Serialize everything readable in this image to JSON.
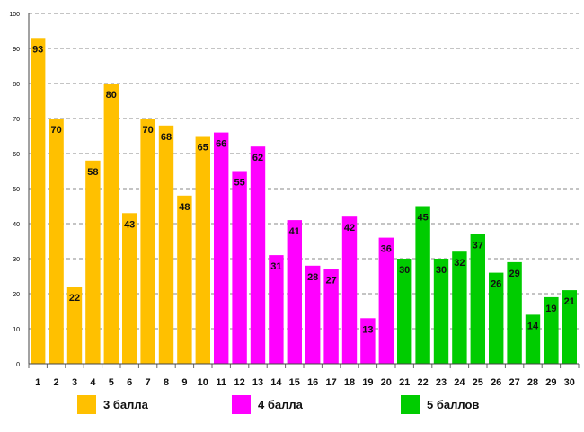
{
  "chart_data": {
    "type": "bar",
    "title": "",
    "xlabel": "",
    "ylabel": "",
    "ylim": [
      0,
      100
    ],
    "yticks": [
      0,
      10,
      20,
      30,
      40,
      50,
      60,
      70,
      80,
      90,
      100
    ],
    "grid": true,
    "legend_placement": "bottom",
    "categories": [
      "1",
      "2",
      "3",
      "4",
      "5",
      "6",
      "7",
      "8",
      "9",
      "10",
      "11",
      "12",
      "13",
      "14",
      "15",
      "16",
      "17",
      "18",
      "19",
      "20",
      "21",
      "22",
      "23",
      "24",
      "25",
      "26",
      "27",
      "28",
      "29",
      "30"
    ],
    "values": [
      93,
      70,
      22,
      58,
      80,
      43,
      70,
      68,
      48,
      65,
      66,
      55,
      62,
      31,
      41,
      28,
      27,
      42,
      13,
      36,
      30,
      45,
      30,
      32,
      37,
      26,
      29,
      14,
      19,
      21
    ],
    "groups": [
      {
        "name": "3 балла",
        "color": "#FFC000",
        "from": 1,
        "to": 10
      },
      {
        "name": "4 балла",
        "color": "#FF00FF",
        "from": 11,
        "to": 20
      },
      {
        "name": "5 баллов",
        "color": "#00CC00",
        "from": 21,
        "to": 30
      }
    ]
  }
}
